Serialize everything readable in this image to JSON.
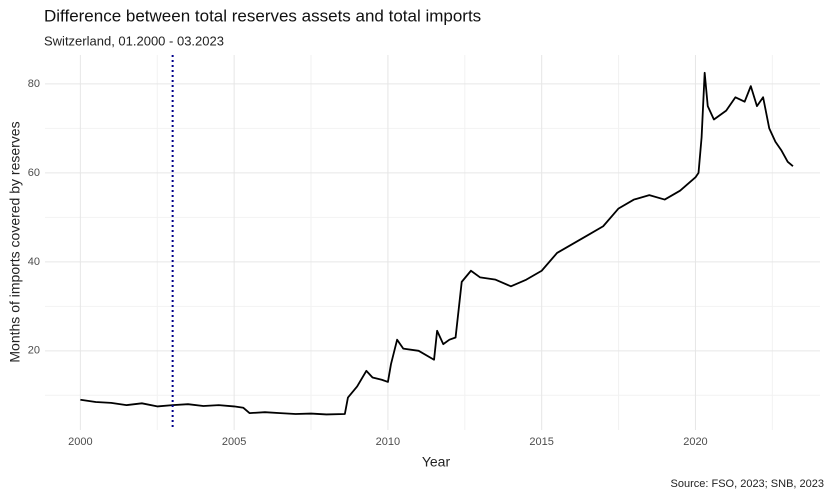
{
  "chart_data": {
    "type": "line",
    "title": "Difference between total reserves assets and total imports",
    "subtitle": "Switzerland, 01.2000 - 03.2023",
    "x_label": "Year",
    "y_label": "Months of imports covered by reserves",
    "caption": "Source: FSO, 2023; SNB, 2023",
    "x": [
      2000,
      2000.5,
      2001,
      2001.5,
      2002,
      2002.5,
      2003,
      2003.5,
      2004,
      2004.5,
      2005,
      2005.3,
      2005.5,
      2006,
      2006.5,
      2007,
      2007.5,
      2008,
      2008.6,
      2008.7,
      2009,
      2009.3,
      2009.5,
      2009.8,
      2010,
      2010.1,
      2010.3,
      2010.5,
      2011,
      2011.5,
      2011.6,
      2011.8,
      2012,
      2012.2,
      2012.4,
      2012.7,
      2013,
      2013.5,
      2014,
      2014.5,
      2015,
      2015.5,
      2016,
      2016.5,
      2017,
      2017.5,
      2018,
      2018.5,
      2019,
      2019.5,
      2020,
      2020.1,
      2020.2,
      2020.3,
      2020.4,
      2020.6,
      2021,
      2021.3,
      2021.6,
      2021.8,
      2022,
      2022.2,
      2022.4,
      2022.6,
      2022.8,
      2023,
      2023.17
    ],
    "series": [
      {
        "name": "Months of imports covered by reserves",
        "color": "#000000",
        "values": [
          9,
          8.5,
          8.3,
          7.8,
          8.2,
          7.5,
          7.8,
          8,
          7.6,
          7.8,
          7.5,
          7.2,
          6,
          6.2,
          6,
          5.8,
          5.9,
          5.7,
          5.8,
          9.5,
          12,
          15.5,
          14,
          13.5,
          13,
          17,
          22.5,
          20.5,
          20,
          18,
          24.5,
          21.5,
          22.5,
          23,
          35.5,
          38,
          36.5,
          36,
          34.5,
          36,
          38,
          42,
          44,
          46,
          48,
          52,
          54,
          55,
          54,
          56,
          59,
          60,
          68,
          82.5,
          75,
          72,
          74,
          77,
          76,
          79.5,
          75,
          77,
          70,
          67,
          65,
          62.5,
          61.5
        ]
      }
    ],
    "vline": {
      "x": 2003,
      "color": "#00008b"
    },
    "xlim": [
      1998.85,
      2024.05
    ],
    "xticks": [
      2000,
      2005,
      2010,
      2015,
      2020
    ],
    "ylim": [
      2.2,
      86.5
    ],
    "yticks": [
      20,
      40,
      60,
      80
    ],
    "grid": true
  }
}
